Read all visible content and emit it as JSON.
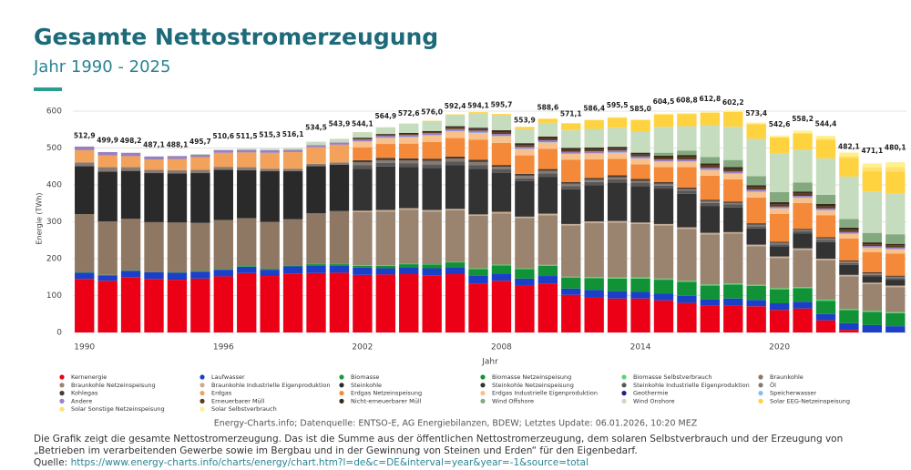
{
  "chart_data": {
    "type": "stacked-bar",
    "title": "Gesamte Nettostromerzeugung",
    "subtitle": "Jahr 1990 - 2025",
    "y_label": "Energie (TWh)",
    "x_label": "Jahr",
    "x": [
      1990,
      1991,
      1992,
      1993,
      1994,
      1995,
      1996,
      1997,
      1998,
      1999,
      2000,
      2001,
      2002,
      2003,
      2004,
      2005,
      2006,
      2007,
      2008,
      2009,
      2010,
      2011,
      2012,
      2013,
      2014,
      2015,
      2016,
      2017,
      2018,
      2019,
      2020,
      2021,
      2022,
      2023,
      2024,
      2025
    ],
    "xlim": [
      1989.5,
      2025.5
    ],
    "xticks": [
      1990,
      1996,
      2002,
      2008,
      2014,
      2020
    ],
    "ylim": [
      0,
      620
    ],
    "yticks": [
      0,
      100,
      200,
      300,
      400,
      500,
      600
    ],
    "grid": true,
    "series": [
      {
        "name": "Kernenergie",
        "color": "#ec0016",
        "values": [
          145,
          140,
          150,
          145,
          143,
          146,
          152,
          161,
          153,
          160,
          161,
          162,
          156,
          157,
          158,
          155,
          158,
          133,
          140,
          127,
          133,
          102,
          94,
          92,
          92,
          87,
          80,
          72,
          72,
          71,
          61,
          65,
          33,
          7,
          0,
          0
        ]
      },
      {
        "name": "Laufwasser",
        "color": "#1c3fc8",
        "values": [
          17,
          15,
          17,
          18,
          19,
          19,
          18,
          17,
          17,
          19,
          21,
          20,
          20,
          17,
          19,
          19,
          19,
          21,
          20,
          19,
          20,
          17,
          21,
          20,
          18,
          18,
          19,
          17,
          20,
          17,
          18,
          18,
          17,
          18,
          20,
          17
        ]
      },
      {
        "name": "Biomasse",
        "color": "#1a9a3e",
        "values": [
          1,
          1,
          1,
          1,
          1,
          2,
          2,
          2,
          3,
          3,
          4,
          4,
          null,
          null,
          null,
          null,
          null,
          null,
          null,
          null,
          null,
          null,
          null,
          null,
          null,
          null,
          null,
          null,
          null,
          null,
          null,
          null,
          null,
          null,
          null,
          null
        ]
      },
      {
        "name": "Biomasse Netzeinspeisung",
        "color": "#119236",
        "values": [
          null,
          null,
          null,
          null,
          null,
          null,
          null,
          null,
          null,
          null,
          null,
          null,
          5,
          7,
          8,
          10,
          13,
          18,
          22,
          26,
          28,
          30,
          32,
          34,
          36,
          38,
          38,
          38,
          38,
          38,
          38,
          37,
          36,
          36,
          36,
          35
        ]
      },
      {
        "name": "Biomasse Selbstverbrauch",
        "color": "#5fd472",
        "values": [
          null,
          null,
          null,
          null,
          null,
          null,
          null,
          null,
          null,
          null,
          null,
          null,
          1,
          1,
          1,
          1,
          1,
          2,
          2,
          2,
          2,
          2,
          3,
          3,
          3,
          3,
          3,
          3,
          3,
          3,
          3,
          3,
          3,
          3,
          3,
          3
        ]
      },
      {
        "name": "Braunkohle",
        "color": "#8f7863",
        "values": [
          158,
          145,
          140,
          135,
          135,
          130,
          133,
          130,
          127,
          125,
          137,
          143,
          null,
          null,
          null,
          null,
          null,
          null,
          null,
          null,
          null,
          null,
          null,
          null,
          null,
          null,
          null,
          null,
          null,
          null,
          null,
          null,
          null,
          null,
          null,
          null
        ]
      },
      {
        "name": "Braunkohle Netzeinspeisung",
        "color": "#9a8470",
        "values": [
          null,
          null,
          null,
          null,
          null,
          null,
          null,
          null,
          null,
          null,
          null,
          null,
          144,
          146,
          147,
          143,
          140,
          142,
          139,
          136,
          135,
          139,
          147,
          149,
          145,
          144,
          141,
          136,
          135,
          105,
          82,
          101,
          107,
          88,
          72,
          68
        ]
      },
      {
        "name": "Braunkohle Industrielle Eigenproduktion",
        "color": "#c8ae96",
        "values": [
          null,
          null,
          null,
          null,
          null,
          null,
          null,
          null,
          null,
          null,
          null,
          null,
          4,
          4,
          4,
          4,
          4,
          4,
          4,
          4,
          4,
          4,
          4,
          4,
          4,
          4,
          4,
          4,
          4,
          4,
          4,
          4,
          4,
          4,
          4,
          4
        ]
      },
      {
        "name": "Steinkohle",
        "color": "#2a2a2a",
        "values": [
          130,
          135,
          130,
          133,
          133,
          135,
          136,
          130,
          137,
          130,
          128,
          126,
          null,
          null,
          null,
          null,
          null,
          null,
          null,
          null,
          null,
          null,
          null,
          null,
          null,
          null,
          null,
          null,
          null,
          null,
          null,
          null,
          null,
          null,
          null,
          null
        ]
      },
      {
        "name": "Steinkohle Netzeinspeisung",
        "color": "#333333",
        "values": [
          null,
          null,
          null,
          null,
          null,
          null,
          null,
          null,
          null,
          null,
          null,
          null,
          114,
          118,
          112,
          114,
          118,
          124,
          106,
          96,
          100,
          94,
          98,
          104,
          99,
          96,
          91,
          73,
          67,
          44,
          28,
          40,
          45,
          27,
          17,
          16
        ]
      },
      {
        "name": "Steinkohle Industrielle Eigenproduktion",
        "color": "#585858",
        "values": [
          null,
          null,
          null,
          null,
          null,
          null,
          null,
          null,
          null,
          null,
          null,
          null,
          10,
          10,
          10,
          10,
          10,
          10,
          9,
          8,
          9,
          9,
          9,
          9,
          9,
          8,
          8,
          8,
          8,
          6,
          5,
          6,
          6,
          5,
          4,
          4
        ]
      },
      {
        "name": "Öl",
        "color": "#867a72",
        "values": [
          10,
          12,
          10,
          9,
          9,
          9,
          8,
          8,
          7,
          7,
          6,
          6,
          7,
          7,
          7,
          9,
          8,
          8,
          7,
          7,
          7,
          6,
          6,
          6,
          5,
          5,
          5,
          5,
          4,
          4,
          4,
          4,
          4,
          4,
          4,
          4
        ]
      },
      {
        "name": "Kohlegas",
        "color": "#4a3a30",
        "values": [
          null,
          null,
          null,
          null,
          null,
          null,
          null,
          null,
          null,
          null,
          null,
          null,
          6,
          6,
          6,
          6,
          6,
          6,
          5,
          5,
          5,
          5,
          5,
          5,
          5,
          5,
          4,
          4,
          4,
          4,
          3,
          3,
          3,
          3,
          3,
          3
        ]
      },
      {
        "name": "Erdgas",
        "color": "#f3a25c",
        "values": [
          33,
          32,
          30,
          28,
          30,
          34,
          38,
          40,
          43,
          45,
          45,
          48,
          null,
          null,
          null,
          null,
          null,
          null,
          null,
          null,
          null,
          null,
          null,
          null,
          null,
          null,
          null,
          null,
          null,
          null,
          null,
          null,
          null,
          null,
          null,
          null
        ]
      },
      {
        "name": "Erdgas Netzeinspeisung",
        "color": "#f4893a",
        "values": [
          null,
          null,
          null,
          null,
          null,
          null,
          null,
          null,
          null,
          null,
          null,
          null,
          35,
          38,
          40,
          45,
          50,
          55,
          60,
          50,
          55,
          60,
          50,
          45,
          40,
          40,
          55,
          65,
          60,
          70,
          75,
          70,
          60,
          60,
          55,
          60
        ]
      },
      {
        "name": "Erdgas Industrielle Eigenproduktion",
        "color": "#f8c08a",
        "values": [
          null,
          null,
          null,
          null,
          null,
          null,
          null,
          null,
          null,
          null,
          null,
          null,
          15,
          16,
          17,
          18,
          18,
          18,
          18,
          17,
          17,
          16,
          16,
          16,
          15,
          15,
          15,
          15,
          15,
          15,
          15,
          14,
          13,
          12,
          11,
          11
        ]
      },
      {
        "name": "Geothermie",
        "color": "#1a237e",
        "values": [
          null,
          null,
          null,
          null,
          null,
          null,
          null,
          null,
          null,
          null,
          null,
          null,
          0,
          0,
          0.1,
          0.1,
          0.1,
          0.1,
          0.1,
          0.1,
          0.1,
          0.1,
          0.1,
          0.1,
          0.1,
          0.1,
          0.1,
          0.2,
          0.2,
          0.2,
          0.2,
          0.2,
          0.2,
          0.2,
          0.2,
          0.2
        ]
      },
      {
        "name": "Speicherwasser",
        "color": "#86bdf5",
        "values": [
          null,
          null,
          null,
          null,
          null,
          null,
          null,
          null,
          null,
          null,
          null,
          null,
          1,
          1,
          1,
          1,
          1,
          1,
          1,
          1,
          1,
          1,
          1,
          1,
          1,
          1,
          1,
          1,
          1,
          1,
          1,
          1,
          1,
          1,
          1,
          1
        ]
      },
      {
        "name": "Andere",
        "color": "#9a80c2",
        "values": [
          10,
          9,
          9,
          8,
          8,
          7,
          7,
          7,
          7,
          6,
          6,
          6,
          5,
          5,
          5,
          5,
          5,
          5,
          5,
          5,
          5,
          5,
          5,
          5,
          5,
          5,
          5,
          5,
          5,
          5,
          4,
          4,
          4,
          4,
          4,
          4
        ]
      },
      {
        "name": "Erneuerbarer Müll",
        "color": "#5c3d20",
        "values": [
          null,
          null,
          null,
          null,
          null,
          null,
          null,
          null,
          null,
          null,
          null,
          null,
          2,
          2,
          3,
          3,
          4,
          4,
          5,
          5,
          5,
          5,
          5,
          5,
          5,
          5,
          6,
          6,
          6,
          6,
          6,
          6,
          6,
          6,
          5,
          5
        ]
      },
      {
        "name": "Nicht-erneuerbarer Müll",
        "color": "#3b2a1c",
        "values": [
          null,
          null,
          null,
          null,
          null,
          null,
          null,
          null,
          null,
          null,
          null,
          null,
          3,
          3,
          3,
          3,
          4,
          4,
          5,
          5,
          5,
          5,
          5,
          5,
          5,
          5,
          6,
          6,
          6,
          6,
          6,
          6,
          6,
          6,
          5,
          5
        ]
      },
      {
        "name": "Wind Offshore",
        "color": "#84a97e",
        "values": [
          null,
          null,
          null,
          null,
          null,
          null,
          null,
          null,
          null,
          null,
          null,
          null,
          null,
          null,
          null,
          null,
          null,
          null,
          null,
          0.1,
          0.2,
          0.6,
          0.7,
          0.9,
          1.4,
          8.2,
          12.1,
          17.4,
          19.3,
          24.7,
          27.3,
          24,
          24.7,
          23.5,
          25.7,
          26
        ]
      },
      {
        "name": "Wind Onshore",
        "color": "#c6dcbf",
        "values": [
          0,
          0,
          0,
          1,
          1,
          2,
          2,
          3,
          4,
          5,
          9,
          10,
          15,
          18,
          25,
          27,
          30,
          39,
          40,
          38,
          37,
          48,
          50,
          51,
          56,
          70,
          66,
          86,
          90,
          101,
          104,
          89,
          99,
          115,
          112,
          110
        ]
      },
      {
        "name": "Solar EEG-Netzeinspeisung",
        "color": "#ffd23f",
        "values": [
          0,
          0,
          0,
          0,
          0,
          0,
          0,
          0,
          0,
          0,
          0,
          0,
          0.2,
          0.3,
          0.5,
          1,
          2,
          3,
          4,
          6,
          11,
          18,
          24,
          27,
          31,
          33,
          33,
          34,
          40,
          40,
          44,
          44,
          50,
          50,
          55,
          60
        ]
      },
      {
        "name": "Solar Sonstige Netzeinspeisung",
        "color": "#ffe16b",
        "values": [
          null,
          null,
          null,
          null,
          null,
          null,
          null,
          null,
          null,
          null,
          null,
          null,
          null,
          null,
          null,
          null,
          null,
          null,
          null,
          null,
          null,
          null,
          null,
          null,
          null,
          null,
          null,
          null,
          null,
          null,
          null,
          2,
          4,
          6,
          10,
          12
        ]
      },
      {
        "name": "Solar Selbstverbrauch",
        "color": "#fff08f",
        "values": [
          null,
          null,
          null,
          null,
          null,
          null,
          null,
          null,
          null,
          null,
          null,
          null,
          null,
          null,
          null,
          null,
          null,
          null,
          null,
          null,
          0.5,
          1,
          1,
          2,
          2,
          3,
          3,
          3,
          4,
          4,
          5,
          6,
          7,
          9,
          11,
          13
        ]
      }
    ],
    "totals": {
      "values": [
        512.9,
        499.9,
        498.2,
        487.1,
        488.1,
        495.7,
        510.6,
        511.5,
        515.3,
        516.1,
        534.5,
        543.9,
        544.1,
        564.9,
        572.6,
        576.0,
        592.4,
        594.1,
        595.7,
        553.9,
        588.6,
        571.1,
        586.4,
        595.5,
        585.0,
        604.5,
        608.8,
        612.8,
        602.2,
        573.4,
        542.6,
        558.2,
        544.4,
        482.1,
        471.1,
        480.1
      ],
      "value_labels": [
        "512,9",
        "499,9",
        "498,2",
        "487,1",
        "488,1",
        "495,7",
        "510,6",
        "511,5",
        "515,3",
        "516,1",
        "534,5",
        "543,9",
        "544,1",
        "564,9",
        "572,6",
        "576,0",
        "592,4",
        "594,1",
        "595,7",
        "553,9",
        "588,6",
        "571,1",
        "586,4",
        "595,5",
        "585,0",
        "604,5",
        "608,8",
        "612,8",
        "602,2",
        "573,4",
        "542,6",
        "558,2",
        "544,4",
        "482,1",
        "471,1",
        "480,1"
      ]
    },
    "source_note": "Energy-Charts.info; Datenquelle: ENTSO-E, AG Energiebilanzen, BDEW; Letztes Update: 06.01.2026, 10:20 MEZ"
  },
  "description": "Die Grafik zeigt die gesamte Nettostromerzeugung. Das ist die Summe aus der öffentlichen Nettostromerzeugung, dem solaren Selbstverbrauch und der Erzeugung von „Betrieben im verarbeitenden Gewerbe sowie im Bergbau und in der Gewinnung von Steinen und Erden“ für den Eigenbedarf.",
  "source_label": "Quelle:",
  "source_url": "https://www.energy-charts.info/charts/energy/chart.htm?l=de&c=DE&interval=year&year=-1&source=total"
}
